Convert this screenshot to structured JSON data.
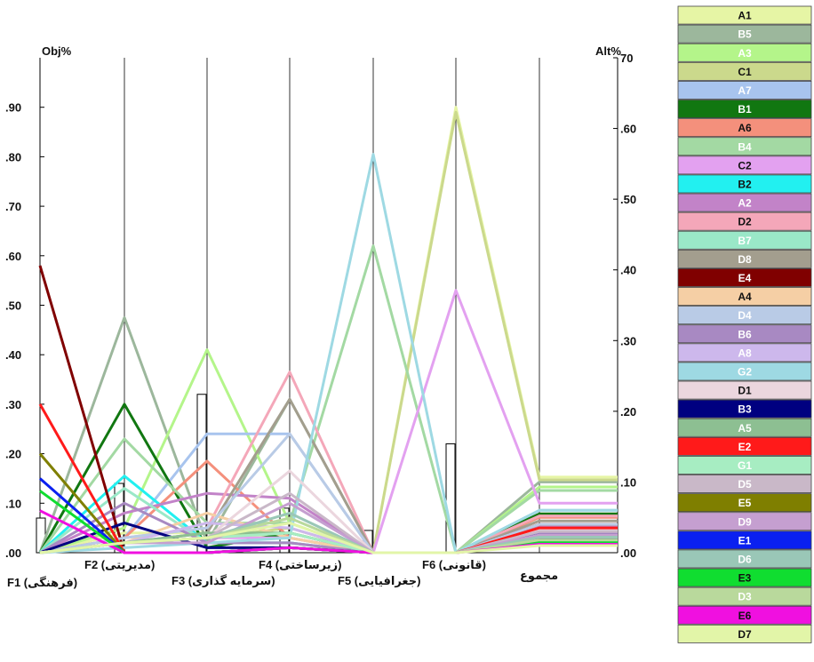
{
  "chart_data": {
    "type": "line",
    "left_axis_title": "Obj%",
    "right_axis_title": "Alt%",
    "left_ylim": [
      0,
      1.0
    ],
    "right_ylim": [
      0,
      0.7
    ],
    "left_ticks": [
      ".00",
      ".10",
      ".20",
      ".30",
      ".40",
      ".50",
      ".60",
      ".70",
      ".80",
      ".90"
    ],
    "left_tick_values": [
      0,
      0.1,
      0.2,
      0.3,
      0.4,
      0.5,
      0.6,
      0.7,
      0.8,
      0.9
    ],
    "right_ticks": [
      ".00",
      ".10",
      ".20",
      ".30",
      ".40",
      ".50",
      ".60",
      "70"
    ],
    "right_tick_values": [
      0,
      0.1,
      0.2,
      0.3,
      0.4,
      0.5,
      0.6,
      0.7
    ],
    "criteria": [
      {
        "code": "F1",
        "name": "(فرهنگی)",
        "weight": 0.07
      },
      {
        "code": "F2",
        "name": "(مدیریتی)",
        "weight": 0.14
      },
      {
        "code": "F3",
        "name": "(سرمایه گذاری)",
        "weight": 0.32
      },
      {
        "code": "F4",
        "name": "(زیرساختی)",
        "weight": 0.09
      },
      {
        "code": "F5",
        "name": "(جغرافیایی)",
        "weight": 0.045
      },
      {
        "code": "F6",
        "name": "(قانونی)",
        "weight": 0.22
      }
    ],
    "total_label": "مجموع",
    "series": [
      {
        "name": "A1",
        "color": "#e6f5a5",
        "label_color": "#111111",
        "values": [
          0,
          0.04,
          0.04,
          0.03,
          0,
          0.9,
          0.107
        ]
      },
      {
        "name": "B5",
        "color": "#9cb79c",
        "label_color": "#ffffff",
        "values": [
          0,
          0.475,
          0.02,
          0.31,
          0,
          0,
          0.1
        ]
      },
      {
        "name": "A3",
        "color": "#b4f58a",
        "label_color": "#ffffff",
        "values": [
          0,
          0.05,
          0.41,
          0.06,
          0,
          0,
          0.093
        ]
      },
      {
        "name": "C1",
        "color": "#cbd98c",
        "label_color": "#111111",
        "values": [
          0,
          0.02,
          0.03,
          0.05,
          0,
          0.89,
          0.103
        ]
      },
      {
        "name": "A7",
        "color": "#a8c4ee",
        "label_color": "#ffffff",
        "values": [
          0,
          0.03,
          0.24,
          0.24,
          0,
          0,
          0.06
        ]
      },
      {
        "name": "B1",
        "color": "#117711",
        "label_color": "#ffffff",
        "values": [
          0,
          0.3,
          0.01,
          0.04,
          0,
          0,
          0.055
        ]
      },
      {
        "name": "A6",
        "color": "#f4907c",
        "label_color": "#111111",
        "values": [
          0,
          0.03,
          0.185,
          0.03,
          0,
          0,
          0.05
        ]
      },
      {
        "name": "B4",
        "color": "#a3d9a3",
        "label_color": "#ffffff",
        "values": [
          0,
          0.23,
          0.06,
          0.06,
          0.62,
          0,
          0.088
        ]
      },
      {
        "name": "C2",
        "color": "#e3a1f0",
        "label_color": "#111111",
        "values": [
          0,
          0.02,
          0.03,
          0.03,
          0,
          0.53,
          0.07
        ]
      },
      {
        "name": "B2",
        "color": "#22f0f0",
        "label_color": "#111111",
        "values": [
          0,
          0.155,
          0.02,
          0.02,
          0,
          0,
          0.035
        ]
      },
      {
        "name": "A2",
        "color": "#c283c8",
        "label_color": "#ffffff",
        "values": [
          0,
          0.08,
          0.12,
          0.11,
          0,
          0,
          0.038
        ]
      },
      {
        "name": "D2",
        "color": "#f4a7b9",
        "label_color": "#111111",
        "values": [
          0,
          0.03,
          0.05,
          0.365,
          0,
          0,
          0.052
        ]
      },
      {
        "name": "B7",
        "color": "#9ae8c8",
        "label_color": "#ffffff",
        "values": [
          0,
          0.13,
          0.02,
          0.02,
          0,
          0,
          0.03
        ]
      },
      {
        "name": "D8",
        "color": "#a39e8e",
        "label_color": "#ffffff",
        "values": [
          0,
          0.02,
          0.04,
          0.31,
          0,
          0,
          0.045
        ]
      },
      {
        "name": "E4",
        "color": "#800000",
        "label_color": "#ffffff",
        "values": [
          0.58,
          0,
          0,
          0.01,
          0,
          0,
          0.04
        ]
      },
      {
        "name": "A4",
        "color": "#f5cfa5",
        "label_color": "#111111",
        "values": [
          0,
          0.02,
          0.08,
          0.03,
          0,
          0,
          0.025
        ]
      },
      {
        "name": "D4",
        "color": "#b9cbe6",
        "label_color": "#ffffff",
        "values": [
          0,
          0.03,
          0.05,
          0.24,
          0,
          0,
          0.04
        ]
      },
      {
        "name": "B6",
        "color": "#a889c2",
        "label_color": "#ffffff",
        "values": [
          0,
          0.1,
          0.02,
          0.02,
          0,
          0,
          0.028
        ]
      },
      {
        "name": "A8",
        "color": "#cdb8ec",
        "label_color": "#ffffff",
        "values": [
          0,
          0.02,
          0.06,
          0.05,
          0,
          0,
          0.02
        ]
      },
      {
        "name": "G2",
        "color": "#9ed9e3",
        "label_color": "#ffffff",
        "values": [
          0,
          0.01,
          0.02,
          0.03,
          0.805,
          0,
          0.06
        ]
      },
      {
        "name": "D1",
        "color": "#ebd6de",
        "label_color": "#111111",
        "values": [
          0,
          0.02,
          0.03,
          0.165,
          0,
          0,
          0.032
        ]
      },
      {
        "name": "B3",
        "color": "#000080",
        "label_color": "#ffffff",
        "values": [
          0,
          0.06,
          0.01,
          0.01,
          0,
          0,
          0.025
        ]
      },
      {
        "name": "A5",
        "color": "#8dbf92",
        "label_color": "#ffffff",
        "values": [
          0,
          0.02,
          0.04,
          0.04,
          0,
          0,
          0.022
        ]
      },
      {
        "name": "E2",
        "color": "#ff1a1a",
        "label_color": "#ffffff",
        "values": [
          0.3,
          0,
          0,
          0.01,
          0,
          0,
          0.035
        ]
      },
      {
        "name": "G1",
        "color": "#a7edc2",
        "label_color": "#ffffff",
        "values": [
          0,
          0.02,
          0.03,
          0.04,
          0,
          0,
          0.02
        ]
      },
      {
        "name": "D5",
        "color": "#c9b8c8",
        "label_color": "#ffffff",
        "values": [
          0,
          0.02,
          0.03,
          0.12,
          0,
          0,
          0.03
        ]
      },
      {
        "name": "E5",
        "color": "#7f7f00",
        "label_color": "#ffffff",
        "values": [
          0.2,
          0,
          0,
          0.01,
          0,
          0,
          0.02
        ]
      },
      {
        "name": "D9",
        "color": "#c59fd0",
        "label_color": "#ffffff",
        "values": [
          0,
          0.02,
          0.02,
          0.1,
          0,
          0,
          0.025
        ]
      },
      {
        "name": "E1",
        "color": "#0a20f0",
        "label_color": "#ffffff",
        "values": [
          0.15,
          0,
          0,
          0.01,
          0,
          0,
          0.018
        ]
      },
      {
        "name": "D6",
        "color": "#9ac7b7",
        "label_color": "#ffffff",
        "values": [
          0,
          0.02,
          0.03,
          0.08,
          0,
          0,
          0.022
        ]
      },
      {
        "name": "E3",
        "color": "#10dd30",
        "label_color": "#111111",
        "values": [
          0.125,
          0,
          0,
          0.01,
          0,
          0,
          0.015
        ]
      },
      {
        "name": "D3",
        "color": "#b9d99c",
        "label_color": "#ffffff",
        "values": [
          0,
          0.02,
          0.03,
          0.07,
          0,
          0,
          0.018
        ]
      },
      {
        "name": "E6",
        "color": "#f010e0",
        "label_color": "#111111",
        "values": [
          0.085,
          0,
          0,
          0.01,
          0,
          0,
          0.012
        ]
      },
      {
        "name": "D7",
        "color": "#e2f5a8",
        "label_color": "#111111",
        "values": [
          0,
          0.02,
          0.03,
          0.06,
          0,
          0,
          0.01
        ]
      }
    ]
  }
}
